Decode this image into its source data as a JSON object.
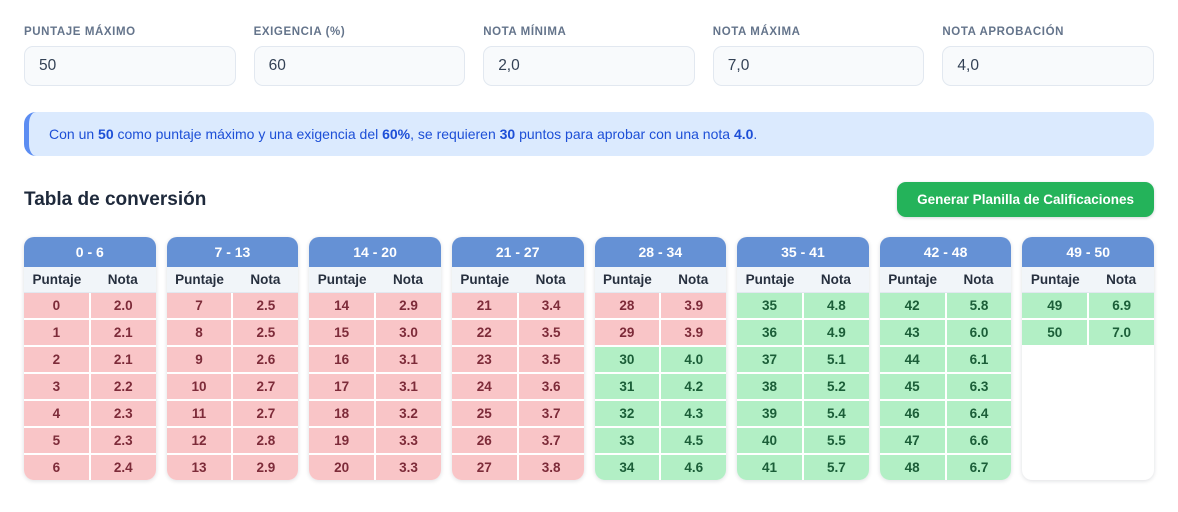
{
  "inputs": [
    {
      "label": "PUNTAJE MÁXIMO",
      "value": "50"
    },
    {
      "label": "EXIGENCIA (%)",
      "value": "60"
    },
    {
      "label": "NOTA MÍNIMA",
      "value": "2,0"
    },
    {
      "label": "NOTA MÁXIMA",
      "value": "7,0"
    },
    {
      "label": "NOTA APROBACIÓN",
      "value": "4,0"
    }
  ],
  "banner": {
    "segments": [
      {
        "text": "Con un ",
        "bold": false
      },
      {
        "text": "50",
        "bold": true
      },
      {
        "text": " como puntaje máximo y una exigencia del ",
        "bold": false
      },
      {
        "text": "60%",
        "bold": true
      },
      {
        "text": ", se requieren ",
        "bold": false
      },
      {
        "text": "30",
        "bold": true
      },
      {
        "text": " puntos para aprobar con una nota ",
        "bold": false
      },
      {
        "text": "4.0",
        "bold": true
      },
      {
        "text": ".",
        "bold": false
      }
    ]
  },
  "section": {
    "title": "Tabla de conversión",
    "button_label": "Generar Planilla de Calificaciones"
  },
  "table": {
    "col_headers": [
      "Puntaje",
      "Nota"
    ],
    "groups": [
      {
        "range": "0 - 6",
        "rows": [
          {
            "puntaje": "0",
            "nota": "2.0",
            "status": "fail"
          },
          {
            "puntaje": "1",
            "nota": "2.1",
            "status": "fail"
          },
          {
            "puntaje": "2",
            "nota": "2.1",
            "status": "fail"
          },
          {
            "puntaje": "3",
            "nota": "2.2",
            "status": "fail"
          },
          {
            "puntaje": "4",
            "nota": "2.3",
            "status": "fail"
          },
          {
            "puntaje": "5",
            "nota": "2.3",
            "status": "fail"
          },
          {
            "puntaje": "6",
            "nota": "2.4",
            "status": "fail"
          }
        ]
      },
      {
        "range": "7 - 13",
        "rows": [
          {
            "puntaje": "7",
            "nota": "2.5",
            "status": "fail"
          },
          {
            "puntaje": "8",
            "nota": "2.5",
            "status": "fail"
          },
          {
            "puntaje": "9",
            "nota": "2.6",
            "status": "fail"
          },
          {
            "puntaje": "10",
            "nota": "2.7",
            "status": "fail"
          },
          {
            "puntaje": "11",
            "nota": "2.7",
            "status": "fail"
          },
          {
            "puntaje": "12",
            "nota": "2.8",
            "status": "fail"
          },
          {
            "puntaje": "13",
            "nota": "2.9",
            "status": "fail"
          }
        ]
      },
      {
        "range": "14 - 20",
        "rows": [
          {
            "puntaje": "14",
            "nota": "2.9",
            "status": "fail"
          },
          {
            "puntaje": "15",
            "nota": "3.0",
            "status": "fail"
          },
          {
            "puntaje": "16",
            "nota": "3.1",
            "status": "fail"
          },
          {
            "puntaje": "17",
            "nota": "3.1",
            "status": "fail"
          },
          {
            "puntaje": "18",
            "nota": "3.2",
            "status": "fail"
          },
          {
            "puntaje": "19",
            "nota": "3.3",
            "status": "fail"
          },
          {
            "puntaje": "20",
            "nota": "3.3",
            "status": "fail"
          }
        ]
      },
      {
        "range": "21 - 27",
        "rows": [
          {
            "puntaje": "21",
            "nota": "3.4",
            "status": "fail"
          },
          {
            "puntaje": "22",
            "nota": "3.5",
            "status": "fail"
          },
          {
            "puntaje": "23",
            "nota": "3.5",
            "status": "fail"
          },
          {
            "puntaje": "24",
            "nota": "3.6",
            "status": "fail"
          },
          {
            "puntaje": "25",
            "nota": "3.7",
            "status": "fail"
          },
          {
            "puntaje": "26",
            "nota": "3.7",
            "status": "fail"
          },
          {
            "puntaje": "27",
            "nota": "3.8",
            "status": "fail"
          }
        ]
      },
      {
        "range": "28 - 34",
        "rows": [
          {
            "puntaje": "28",
            "nota": "3.9",
            "status": "fail"
          },
          {
            "puntaje": "29",
            "nota": "3.9",
            "status": "fail"
          },
          {
            "puntaje": "30",
            "nota": "4.0",
            "status": "pass"
          },
          {
            "puntaje": "31",
            "nota": "4.2",
            "status": "pass"
          },
          {
            "puntaje": "32",
            "nota": "4.3",
            "status": "pass"
          },
          {
            "puntaje": "33",
            "nota": "4.5",
            "status": "pass"
          },
          {
            "puntaje": "34",
            "nota": "4.6",
            "status": "pass"
          }
        ]
      },
      {
        "range": "35 - 41",
        "rows": [
          {
            "puntaje": "35",
            "nota": "4.8",
            "status": "pass"
          },
          {
            "puntaje": "36",
            "nota": "4.9",
            "status": "pass"
          },
          {
            "puntaje": "37",
            "nota": "5.1",
            "status": "pass"
          },
          {
            "puntaje": "38",
            "nota": "5.2",
            "status": "pass"
          },
          {
            "puntaje": "39",
            "nota": "5.4",
            "status": "pass"
          },
          {
            "puntaje": "40",
            "nota": "5.5",
            "status": "pass"
          },
          {
            "puntaje": "41",
            "nota": "5.7",
            "status": "pass"
          }
        ]
      },
      {
        "range": "42 - 48",
        "rows": [
          {
            "puntaje": "42",
            "nota": "5.8",
            "status": "pass"
          },
          {
            "puntaje": "43",
            "nota": "6.0",
            "status": "pass"
          },
          {
            "puntaje": "44",
            "nota": "6.1",
            "status": "pass"
          },
          {
            "puntaje": "45",
            "nota": "6.3",
            "status": "pass"
          },
          {
            "puntaje": "46",
            "nota": "6.4",
            "status": "pass"
          },
          {
            "puntaje": "47",
            "nota": "6.6",
            "status": "pass"
          },
          {
            "puntaje": "48",
            "nota": "6.7",
            "status": "pass"
          }
        ]
      },
      {
        "range": "49 - 50",
        "rows": [
          {
            "puntaje": "49",
            "nota": "6.9",
            "status": "pass"
          },
          {
            "puntaje": "50",
            "nota": "7.0",
            "status": "pass"
          }
        ]
      }
    ]
  },
  "colors": {
    "header_blue": "#6591d5",
    "fail_bg": "#f9c5c7",
    "fail_text": "#7d2b39",
    "pass_bg": "#b2efc5",
    "pass_text": "#1b5e38",
    "banner_bg": "#dbeafe",
    "banner_text": "#1d4fd7",
    "banner_accent": "#5c8df2",
    "button_green": "#24b35a"
  }
}
